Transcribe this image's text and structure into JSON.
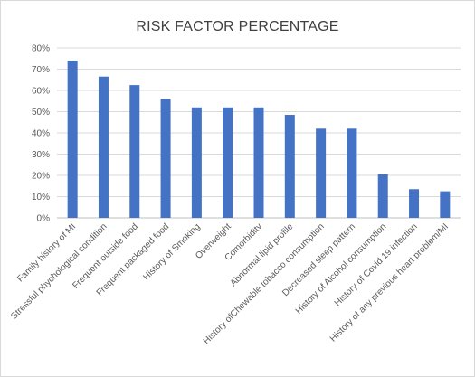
{
  "chart_data": {
    "type": "bar",
    "title": "RISK FACTOR PERCENTAGE",
    "xlabel": "",
    "ylabel": "",
    "ylim": [
      0,
      80
    ],
    "y_tick_labels": [
      "0%",
      "10%",
      "20%",
      "30%",
      "40%",
      "50%",
      "60%",
      "70%",
      "80%"
    ],
    "grid": true,
    "legend": "none",
    "bar_color": "#4472c4",
    "categories": [
      "Family history of MI",
      "Stressful phychological condition",
      "Frequent outside food",
      "Frequent packaged food",
      "History of Smoking",
      "Overweight",
      "Comorbidity",
      "Abnormal lipid profile",
      "History ofChewable tobacco consumption",
      "Decreased sleep pattern",
      "History of Alcohol consumption",
      "History of Covid 19 infection",
      "History of any previous heart problem/MI"
    ],
    "values": [
      74,
      66.5,
      62.5,
      56,
      52,
      52,
      52,
      48.5,
      42,
      42,
      20.5,
      13.5,
      12.5
    ]
  }
}
